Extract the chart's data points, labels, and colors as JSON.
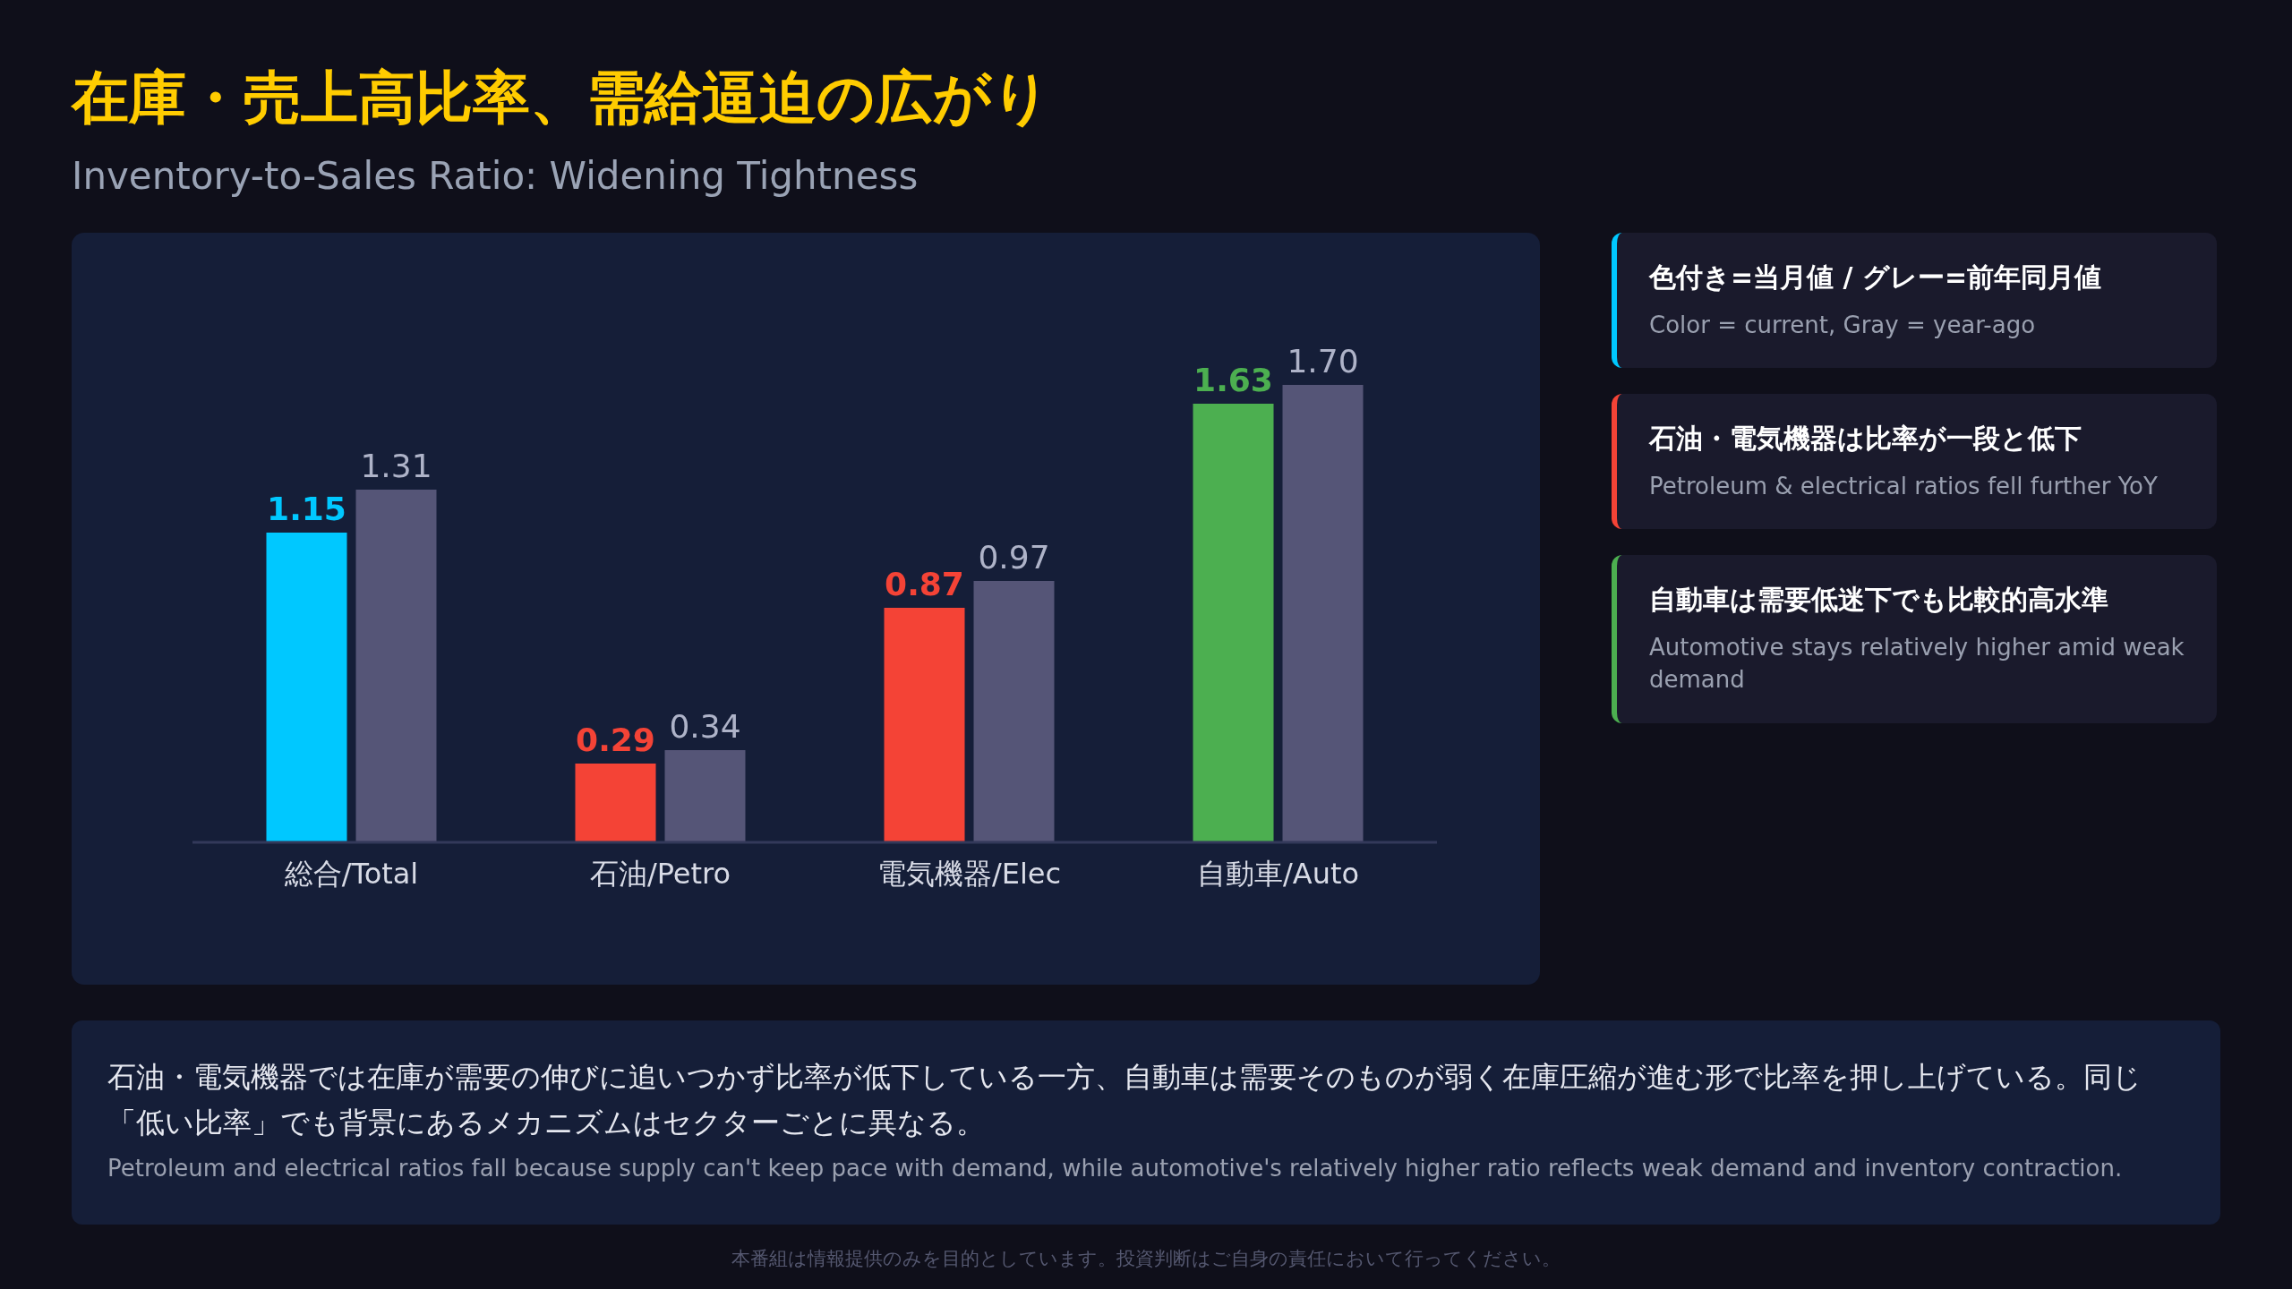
{
  "chart_data": {
    "type": "bar",
    "title": "在庫・売上高比率、需給逼迫の広がり",
    "subtitle": "Inventory-to-Sales Ratio: Widening Tightness",
    "categories": [
      "総合/Total",
      "石油/Petro",
      "電気機器/Elec",
      "自動車/Auto"
    ],
    "series": [
      {
        "colors": [
          "#00c8ff",
          "#f44336",
          "#f44336",
          "#4caf50"
        ],
        "values": [
          1.15,
          0.29,
          0.87,
          1.63
        ],
        "value_labels": [
          "1.15",
          "0.29",
          "0.87",
          "1.63"
        ]
      },
      {
        "color": "#555577",
        "values": [
          1.31,
          0.34,
          0.97,
          1.7
        ],
        "value_labels": [
          "1.31",
          "0.34",
          "0.97",
          "1.70"
        ]
      }
    ],
    "annotations": [
      "色付き=当月値 / グレー=前年同月値",
      "Color = current, Gray = year-ago",
      "石油・電気機器は比率が一段と低下",
      "Petroleum & electrical ratios fell further YoY",
      "自動車は需要低迷下でも比較的高水準",
      "Automotive stays relatively higher amid weak demand",
      "石油・電気機器では在庫が需要の伸びに追いつかず比率が低下している一方、自動車は需要そのものが弱く在庫圧縮が進む形で比率を押し上げている。同じ「低い比率」でも背景にあるメカニズムはセクターごとに異なる。",
      "Petroleum and electrical ratios fall because supply can't keep pace with demand, while automotive's relatively higher ratio reflects weak demand and inventory contraction.",
      "本番組は情報提供のみを目的としています。投資判断はご自身の責任において行ってください。"
    ]
  }
}
